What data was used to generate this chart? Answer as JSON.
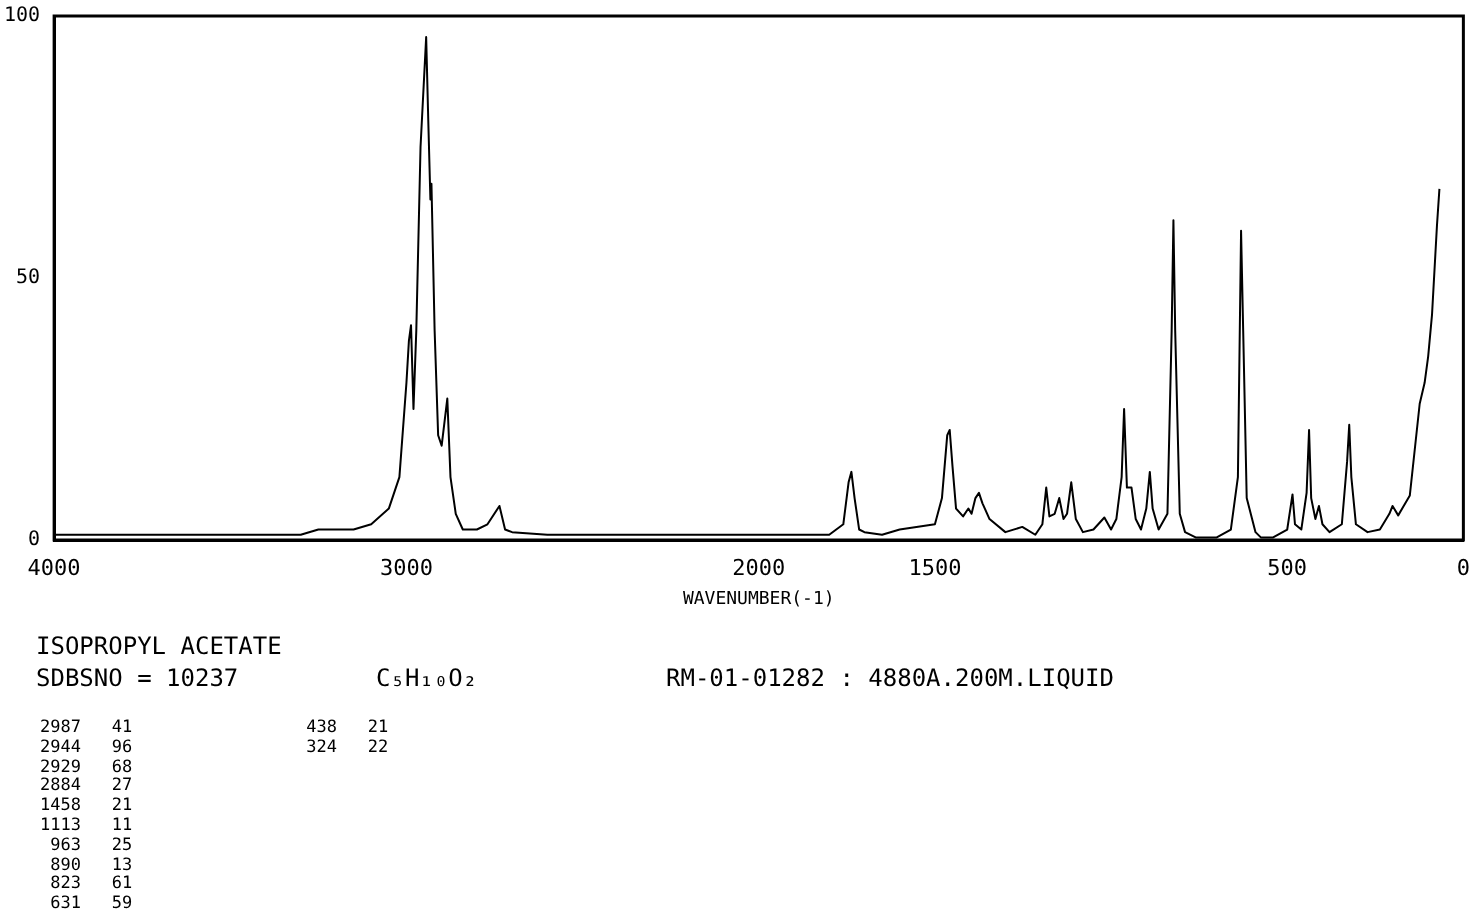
{
  "chart_data": {
    "type": "line",
    "title": "ISOPROPYL ACETATE",
    "xlabel": "WAVENUMBER(-1)",
    "x": [
      4000,
      3300,
      3250,
      3150,
      3100,
      3050,
      3020,
      3000,
      2993,
      2987,
      2980,
      2972,
      2960,
      2944,
      2938,
      2932,
      2929,
      2920,
      2910,
      2900,
      2884,
      2875,
      2860,
      2840,
      2800,
      2770,
      2736,
      2720,
      2700,
      2600,
      2400,
      2200,
      2100,
      1800,
      1760,
      1745,
      1737,
      1728,
      1715,
      1700,
      1650,
      1600,
      1500,
      1480,
      1465,
      1458,
      1450,
      1440,
      1420,
      1405,
      1396,
      1385,
      1375,
      1365,
      1345,
      1300,
      1252,
      1215,
      1195,
      1184,
      1175,
      1160,
      1147,
      1135,
      1125,
      1113,
      1100,
      1080,
      1050,
      1019,
      1000,
      985,
      970,
      963,
      955,
      942,
      930,
      915,
      900,
      890,
      882,
      865,
      840,
      828,
      823,
      818,
      805,
      790,
      760,
      700,
      660,
      640,
      631,
      625,
      615,
      590,
      575,
      540,
      500,
      485,
      478,
      460,
      445,
      438,
      432,
      420,
      410,
      400,
      380,
      345,
      330,
      324,
      318,
      305,
      272,
      237,
      210,
      201,
      185,
      152,
      124,
      110,
      100,
      89,
      75,
      68
    ],
    "series": [
      {
        "color": "#000000",
        "values": [
          1,
          1,
          2,
          2,
          3,
          6,
          12,
          30,
          38,
          41,
          25,
          40,
          75,
          96,
          80,
          65,
          68,
          40,
          20,
          18,
          27,
          12,
          5,
          2,
          2,
          3,
          6.5,
          2,
          1.5,
          1,
          1,
          1,
          1,
          1,
          3,
          11,
          13,
          8,
          2,
          1.5,
          1,
          2,
          3,
          8,
          20,
          21,
          14,
          6,
          4.5,
          6,
          5,
          8,
          9,
          7,
          4,
          1.5,
          2.5,
          1,
          3,
          10,
          4.5,
          5,
          8,
          4,
          5,
          11,
          4,
          1.5,
          2,
          4.3,
          2,
          4,
          12,
          25,
          10,
          10,
          4,
          2,
          6,
          13,
          6,
          2,
          5,
          40,
          61,
          40,
          5,
          1.5,
          0.5,
          0.5,
          2,
          12,
          59,
          40,
          8,
          1.5,
          0.5,
          0.5,
          2,
          8.7,
          3,
          2,
          9,
          21,
          8,
          4,
          6.5,
          3,
          1.5,
          3,
          15,
          22,
          12,
          3,
          1.5,
          2,
          5,
          6.5,
          4.7,
          8.5,
          26,
          30,
          35,
          43,
          60,
          67
        ]
      }
    ],
    "xlim": [
      4000,
      0
    ],
    "xticks": [
      4000,
      3000,
      2000,
      1500,
      500,
      0
    ],
    "ylim": [
      0,
      100
    ],
    "yticks": [
      0,
      50,
      100
    ],
    "grid": false,
    "legend": false,
    "marker": "none",
    "line_style": "solid",
    "annotations": [
      "SDBSNO = 10237",
      "C₅H₁₀O₂",
      "RM-01-01282 : 4880A.200M.LIQUID",
      "2987   41",
      "2944   96",
      "2929   68",
      "2884   27",
      "1458   21",
      "1113   11",
      " 963   25",
      " 890   13",
      " 823   61",
      " 631   59",
      " 438   21",
      " 324   22"
    ]
  }
}
